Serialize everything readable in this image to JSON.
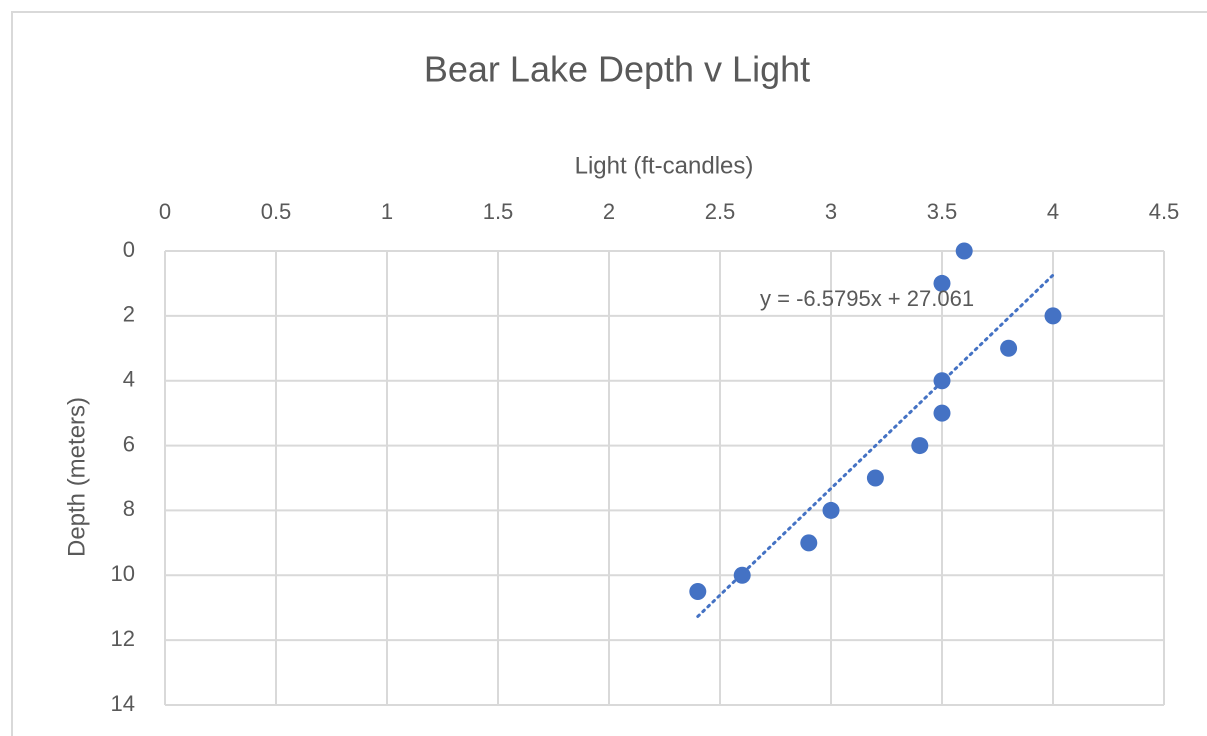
{
  "chart_data": {
    "type": "scatter",
    "title": "Bear Lake Depth v Light",
    "x_label": "Light (ft-candles)",
    "y_label": "Depth (meters)",
    "series": [
      {
        "name": "Depth",
        "color": "#4472c4",
        "x": [
          3.6,
          3.5,
          4,
          3.8,
          3.5,
          3.5,
          3.4,
          3.2,
          3,
          2.9,
          2.6,
          2.4
        ],
        "values": [
          0,
          1,
          2,
          3,
          4,
          5,
          6,
          7,
          8,
          9,
          10,
          10.5
        ]
      }
    ],
    "trendline": {
      "slope": -6.5795,
      "intercept": 27.061,
      "label": "y = -6.5795x + 27.061",
      "style": "dotted"
    },
    "xlim": [
      0,
      4.5
    ],
    "xticks": [
      0,
      0.5,
      1,
      1.5,
      2,
      2.5,
      3,
      3.5,
      4,
      4.5
    ],
    "ylim": [
      0,
      14
    ],
    "yticks": [
      0,
      2,
      4,
      6,
      8,
      10,
      12,
      14
    ],
    "y_inverted": true,
    "x_axis_position": "top",
    "grid": true
  }
}
